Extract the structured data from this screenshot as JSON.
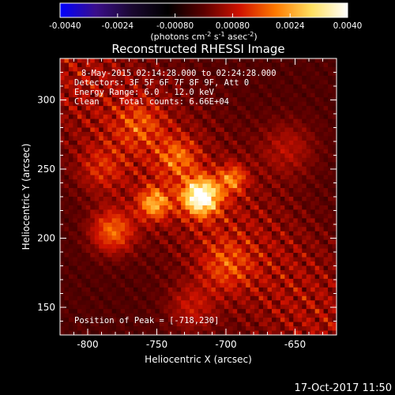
{
  "chart_data": {
    "type": "heatmap",
    "title": "Reconstructed RHESSI Image",
    "xlabel": "Heliocentric X (arcsec)",
    "ylabel": "Heliocentric Y (arcsec)",
    "xlim": [
      -820,
      -620
    ],
    "ylim": [
      130,
      330
    ],
    "xticks": [
      -800,
      -750,
      -700,
      -650
    ],
    "yticks": [
      150,
      200,
      250,
      300
    ],
    "colorbar": {
      "min": -0.004,
      "max": 0.004,
      "ticks": [
        "-0.0040",
        "-0.0024",
        "-0.00080",
        "0.00080",
        "0.0024",
        "0.0040"
      ],
      "label_main": "(photons cm",
      "label_exp1": "-2",
      "label_mid": " s",
      "label_exp2": "-1",
      "label_end": " asec",
      "label_exp3": "-2",
      "label_close": ")",
      "colormap": [
        "#0000ff",
        "#3a0e8a",
        "#1a0830",
        "#000000",
        "#5c0000",
        "#d01200",
        "#ff7a00",
        "#ffe060",
        "#ffffff"
      ]
    },
    "annotations": [
      "8-May-2015 02:14:28.000 to 02:24:28.000",
      "Detectors: 3F 5F 6F 7F 8F 9F, Att 0",
      "Energy Range: 6.0 - 12.0 keV",
      "Clean    Total counts: 6.66E+04"
    ],
    "peak_label": "Position of Peak = [-718,230]",
    "peak": {
      "x": -718,
      "y": 230
    },
    "sources": [
      {
        "x": -718,
        "y": 230,
        "amplitude": 0.004,
        "sigma": 9
      },
      {
        "x": -752,
        "y": 225,
        "amplitude": 0.0022,
        "sigma": 8
      },
      {
        "x": -695,
        "y": 243,
        "amplitude": 0.0017,
        "sigma": 7
      },
      {
        "x": -782,
        "y": 205,
        "amplitude": 0.0018,
        "sigma": 11
      },
      {
        "x": -735,
        "y": 258,
        "amplitude": 0.0013,
        "sigma": 10
      },
      {
        "x": -762,
        "y": 282,
        "amplitude": 0.001,
        "sigma": 12
      },
      {
        "x": -700,
        "y": 180,
        "amplitude": 0.0011,
        "sigma": 13
      },
      {
        "x": -790,
        "y": 250,
        "amplitude": 0.0009,
        "sigma": 12
      },
      {
        "x": -655,
        "y": 265,
        "amplitude": 0.0008,
        "sigma": 14
      },
      {
        "x": -725,
        "y": 150,
        "amplitude": 0.0009,
        "sigma": 12
      }
    ]
  },
  "footer": {
    "date": "17-Oct-2017 11:50"
  }
}
